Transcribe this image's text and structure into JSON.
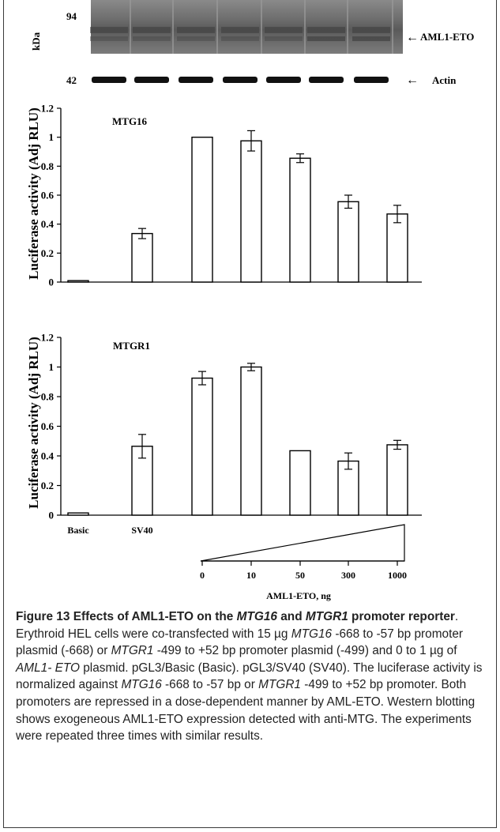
{
  "western": {
    "kda_label": "kDa",
    "marker_top": "94",
    "marker_bottom": "42",
    "band_top_label": "AML1-ETO",
    "band_bottom_label": "Actin",
    "arrow_glyph": "←"
  },
  "chart_data": [
    {
      "type": "bar",
      "title": "MTG16",
      "ylabel": "Luciferase activity (Adj RLU)",
      "ylim": [
        0,
        1.2
      ],
      "yticks": [
        "0",
        "0.2",
        "0.4",
        "0.6",
        "0.8",
        "1",
        "1.2"
      ],
      "categories": [
        "Basic",
        "SV40",
        "0",
        "10",
        "50",
        "300",
        "1000"
      ],
      "values": [
        0.01,
        0.335,
        1.0,
        0.975,
        0.855,
        0.555,
        0.47
      ],
      "errors": [
        0,
        0.035,
        0,
        0.07,
        0.03,
        0.045,
        0.06
      ],
      "bar_color": "#ffffff",
      "grid": false
    },
    {
      "type": "bar",
      "title": "MTGR1",
      "ylabel": "Luciferase activity (Adj RLU)",
      "ylim": [
        0,
        1.2
      ],
      "yticks": [
        "0",
        "0.2",
        "0.4",
        "0.6",
        "0.8",
        "1",
        "1.2"
      ],
      "categories": [
        "Basic",
        "SV40",
        "0",
        "10",
        "50",
        "300",
        "1000"
      ],
      "values": [
        0.015,
        0.465,
        0.925,
        1.0,
        0.435,
        0.365,
        0.475
      ],
      "errors": [
        0,
        0.08,
        0.045,
        0.025,
        0,
        0.055,
        0.03
      ],
      "bar_color": "#ffffff",
      "grid": false
    }
  ],
  "xaxis": {
    "labels": [
      "Basic",
      "SV40"
    ],
    "dose_ticks": [
      "0",
      "10",
      "50",
      "300",
      "1000"
    ],
    "dose_title": "AML1-ETO, ng"
  },
  "caption": {
    "figure_label": "Figure 13",
    "title_part1": "Effects of AML1-ETO on the ",
    "title_gene1": "MTG16",
    "title_part2": " and ",
    "title_gene2": "MTGR1",
    "title_part3": " promoter reporter",
    "body_1": ". Erythroid HEL cells were co-transfected with 15 µg ",
    "gene_a": "MTG16",
    "body_2": " -668 to -57 bp promoter plasmid (-668) or ",
    "gene_b": "MTGR1",
    "body_3": " -499 to +52 bp promoter plasmid (-499) and 0 to 1 µg of ",
    "gene_c": "AML1- ETO",
    "body_4": " plasmid. pGL3/Basic (Basic). pGL3/SV40 (SV40). The luciferase activity is normalized against ",
    "gene_d": "MTG16",
    "body_5": " -668 to -57 bp or ",
    "gene_e": "MTGR1",
    "body_6": " -499 to +52 bp promoter. Both promoters are repressed in a dose-dependent manner by AML-ETO. Western blotting shows exogeneous AML1-ETO expression detected with anti-MTG. The experiments were repeated three times with similar results."
  }
}
